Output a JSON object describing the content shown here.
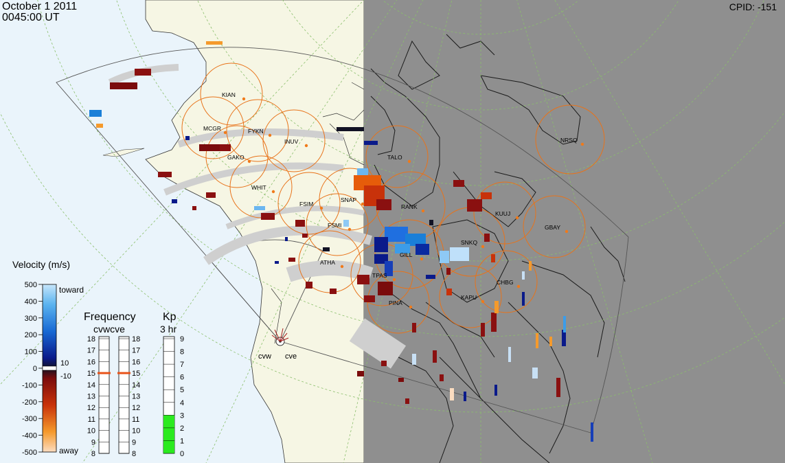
{
  "header": {
    "date": "October  1 2011",
    "time": "0045:00 UT",
    "cpid": "CPID:  -151"
  },
  "colors": {
    "night": "#8f8f8f",
    "ocean_day": "#eaf4fb",
    "land_day": "#f6f6e4",
    "fov_arc": "#cfcfcf",
    "circle": "#e8731a",
    "kp_fill": "#2bea1f",
    "freq_marker": "#e8531a"
  },
  "radars": [
    {
      "name": "cvw"
    },
    {
      "name": "cve"
    }
  ],
  "stations": [
    {
      "code": "KIAN"
    },
    {
      "code": "MCGR"
    },
    {
      "code": "FYKN"
    },
    {
      "code": "INUV"
    },
    {
      "code": "GAKO"
    },
    {
      "code": "TALO"
    },
    {
      "code": "NRSQ"
    },
    {
      "code": "WHIT"
    },
    {
      "code": "FSIM"
    },
    {
      "code": "SNAP"
    },
    {
      "code": "RANK"
    },
    {
      "code": "KUUJ"
    },
    {
      "code": "GBAY"
    },
    {
      "code": "FSMI"
    },
    {
      "code": "GILL"
    },
    {
      "code": "SNKQ"
    },
    {
      "code": "ATHA"
    },
    {
      "code": "TPAS"
    },
    {
      "code": "CHBG"
    },
    {
      "code": "KAPU"
    },
    {
      "code": "PINA"
    }
  ],
  "velocity_scale": {
    "title": "Velocity (m/s)",
    "toward_label": "toward",
    "away_label": "away",
    "ticks": [
      "500",
      "400",
      "300",
      "200",
      "100",
      "0",
      "-100",
      "-200",
      "-300",
      "-400",
      "-500"
    ],
    "inner_pos": "10",
    "inner_neg": "-10"
  },
  "frequency_panel": {
    "title": "Frequency",
    "subtitle": "cvwcve",
    "left_ticks": [
      "18",
      "17",
      "16",
      "15",
      "14",
      "13",
      "12",
      "11",
      "10",
      "9",
      "8"
    ],
    "right_ticks": [
      "18",
      "17",
      "16",
      "15",
      "14",
      "13",
      "12",
      "11",
      "10",
      "9",
      "8"
    ],
    "cvw_mhz": 15,
    "cve_mhz": 15
  },
  "kp_panel": {
    "title": "Kp",
    "subtitle": "3 hr",
    "ticks": [
      "9",
      "8",
      "7",
      "6",
      "5",
      "4",
      "3",
      "2",
      "1",
      "0"
    ],
    "value": 3
  }
}
